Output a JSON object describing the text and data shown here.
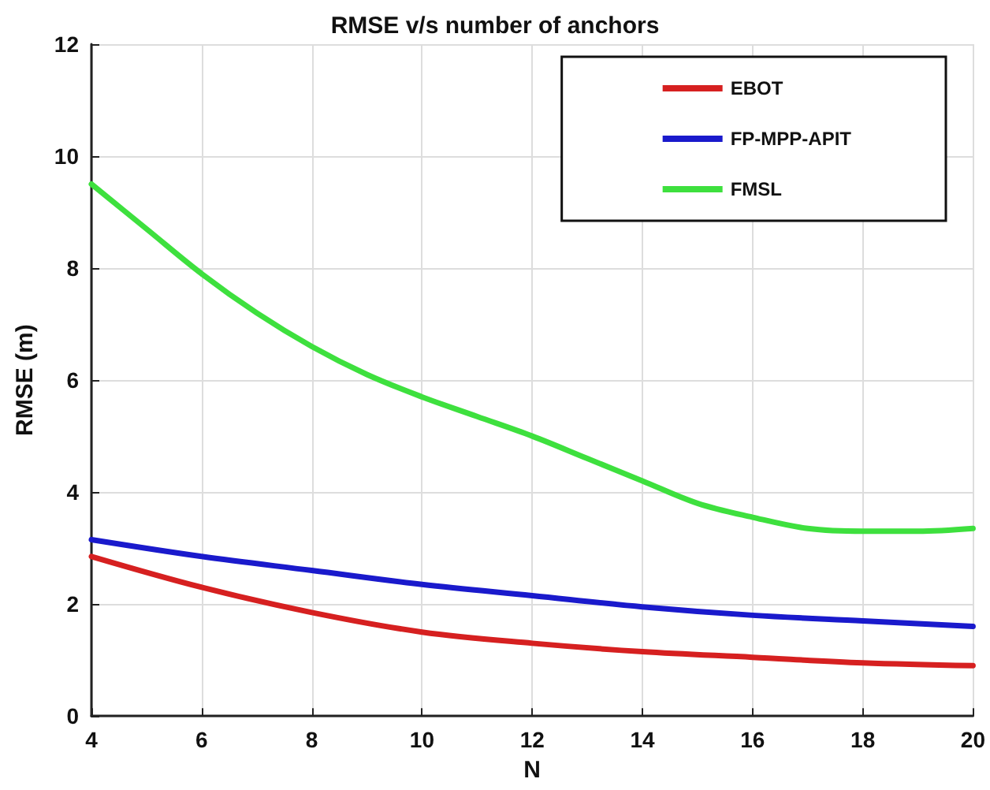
{
  "chart_data": {
    "type": "line",
    "title": "RMSE v/s number of anchors",
    "xlabel": "N",
    "ylabel": "RMSE (m)",
    "xlim": [
      4,
      20
    ],
    "xticks": [
      4,
      6,
      8,
      10,
      12,
      14,
      16,
      18,
      20
    ],
    "ylim": [
      0,
      12
    ],
    "yticks": [
      0,
      2,
      4,
      6,
      8,
      10,
      12
    ],
    "grid": true,
    "legend": "top right",
    "marker": "none",
    "line_style": "solid",
    "series": [
      {
        "name": "EBOT",
        "color": "#d62020",
        "x": [
          4,
          6,
          8,
          10,
          12,
          14,
          16,
          18,
          20
        ],
        "values": [
          2.85,
          2.3,
          1.85,
          1.5,
          1.3,
          1.15,
          1.05,
          0.95,
          0.9
        ]
      },
      {
        "name": "FP-MPP-APIT",
        "color": "#1a1acc",
        "x": [
          4,
          6,
          8,
          10,
          12,
          14,
          16,
          18,
          20
        ],
        "values": [
          3.15,
          2.85,
          2.6,
          2.35,
          2.15,
          1.95,
          1.8,
          1.7,
          1.6
        ]
      },
      {
        "name": "FMSL",
        "color": "#3ee03e",
        "x": [
          4,
          5,
          6,
          7,
          8,
          9,
          10,
          11,
          12,
          13,
          14,
          15,
          16,
          17,
          18,
          19,
          20
        ],
        "values": [
          9.5,
          8.7,
          7.9,
          7.2,
          6.6,
          6.1,
          5.7,
          5.35,
          5.0,
          4.6,
          4.2,
          3.8,
          3.55,
          3.35,
          3.3,
          3.3,
          3.35
        ]
      }
    ]
  }
}
